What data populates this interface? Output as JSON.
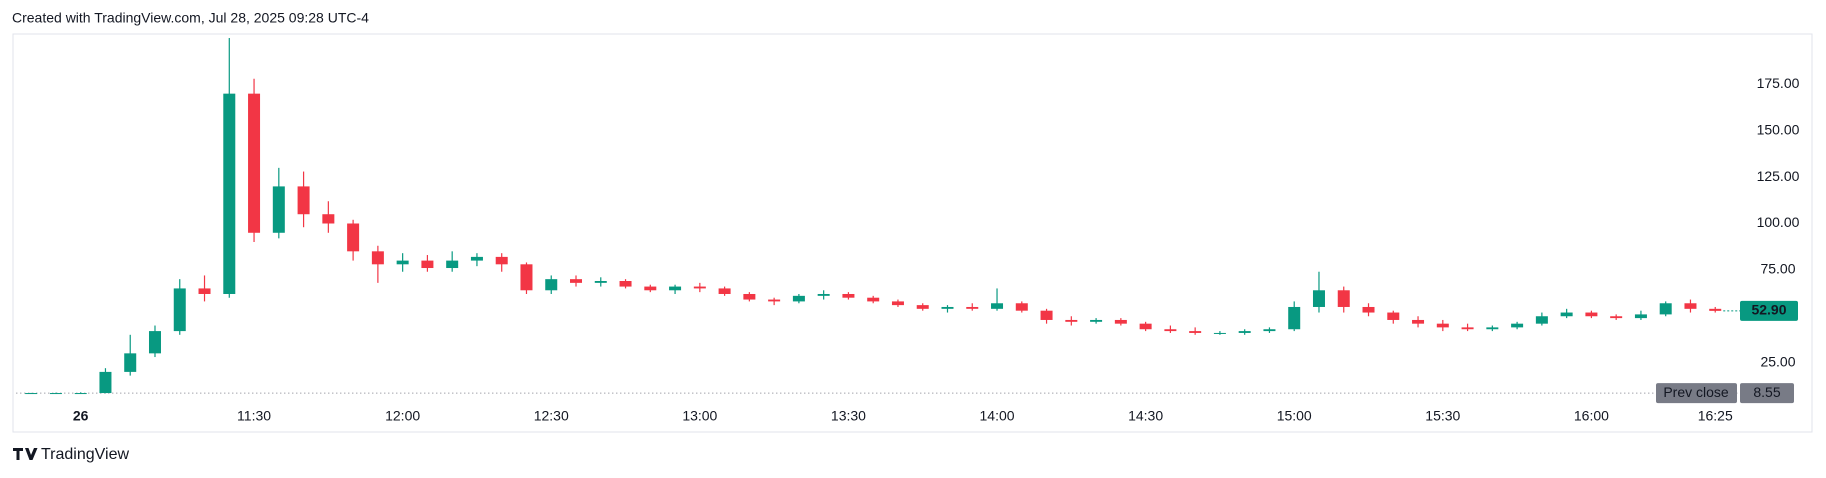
{
  "header": "Created with TradingView.com, Jul 28, 2025 09:28 UTC-4",
  "footer": "TradingView",
  "chart_data": {
    "type": "candlestick",
    "up_color": "#089981",
    "down_color": "#f23645",
    "x": [
      "10:45",
      "10:50",
      "10:55",
      "11:00",
      "11:05",
      "11:10",
      "11:15",
      "11:20",
      "11:25",
      "11:30",
      "11:35",
      "11:40",
      "11:45",
      "11:50",
      "11:55",
      "12:00",
      "12:05",
      "12:10",
      "12:15",
      "12:20",
      "12:25",
      "12:30",
      "12:35",
      "12:40",
      "12:45",
      "12:50",
      "12:55",
      "13:00",
      "13:05",
      "13:10",
      "13:15",
      "13:20",
      "13:25",
      "13:30",
      "13:35",
      "13:40",
      "13:45",
      "13:50",
      "13:55",
      "14:00",
      "14:05",
      "14:10",
      "14:15",
      "14:20",
      "14:25",
      "14:30",
      "14:35",
      "14:40",
      "14:45",
      "14:50",
      "14:55",
      "15:00",
      "15:05",
      "15:10",
      "15:15",
      "15:20",
      "15:25",
      "15:30",
      "15:35",
      "15:40",
      "15:45",
      "15:50",
      "15:55",
      "16:00",
      "16:05",
      "16:10",
      "16:15",
      "16:20",
      "16:25"
    ],
    "open": [
      8.55,
      8.6,
      8.6,
      8.6,
      20,
      30,
      42,
      65,
      62,
      170,
      95,
      120,
      105,
      100,
      85,
      78,
      80,
      76,
      80,
      82,
      78,
      64,
      70,
      68,
      69,
      66,
      64,
      66,
      65,
      62,
      59,
      58,
      61,
      62,
      60,
      58,
      56,
      54,
      55,
      54,
      57,
      53,
      48,
      47,
      48,
      46,
      43,
      42,
      41,
      41,
      42,
      43,
      55,
      64,
      55,
      52,
      48,
      46,
      44,
      43,
      44,
      46,
      50,
      52,
      50,
      49,
      51,
      57,
      54
    ],
    "high": [
      8.7,
      8.8,
      9,
      22,
      40,
      45,
      70,
      72,
      200,
      178,
      130,
      128,
      112,
      102,
      88,
      84,
      83,
      85,
      84,
      84,
      79,
      72,
      72,
      71,
      70,
      67,
      67,
      68,
      66,
      63,
      60,
      62,
      64,
      63,
      61,
      59,
      57,
      56,
      57,
      65,
      58,
      54,
      50,
      49,
      49,
      47,
      45,
      44,
      42,
      43,
      44,
      58,
      74,
      66,
      57,
      53,
      50,
      48,
      46,
      45,
      47,
      52,
      54,
      53,
      51,
      53,
      58,
      59,
      55
    ],
    "low": [
      8.5,
      8.5,
      8.5,
      8.5,
      18,
      28,
      40,
      58,
      60,
      90,
      92,
      98,
      95,
      80,
      68,
      74,
      74,
      74,
      77,
      74,
      62,
      62,
      66,
      66,
      65,
      63,
      62,
      63,
      61,
      58,
      56,
      57,
      59,
      59,
      57,
      55,
      53,
      52,
      53,
      53,
      52,
      46,
      45,
      46,
      45,
      42,
      41,
      40,
      40,
      40,
      41,
      42,
      52,
      52,
      50,
      46,
      44,
      42,
      42,
      42,
      43,
      45,
      49,
      49,
      48,
      48,
      50,
      52,
      52
    ],
    "close": [
      8.6,
      8.6,
      8.6,
      20,
      30,
      42,
      65,
      62,
      170,
      95,
      120,
      105,
      100,
      85,
      78,
      80,
      76,
      80,
      82,
      78,
      64,
      70,
      68,
      69,
      66,
      64,
      66,
      65,
      62,
      59,
      58,
      61,
      62,
      60,
      58,
      56,
      54,
      55,
      54,
      57,
      53,
      48,
      47,
      48,
      46,
      43,
      42,
      41,
      41,
      42,
      43,
      55,
      64,
      55,
      52,
      48,
      46,
      44,
      43,
      44,
      46,
      50,
      52,
      50,
      49,
      51,
      57,
      54,
      52.9
    ],
    "xlim": [
      "10:42",
      "16:30"
    ],
    "xticks": [
      {
        "value": "10:55",
        "label": "26"
      },
      "11:30",
      "12:00",
      "12:30",
      "13:00",
      "13:30",
      "14:00",
      "14:30",
      "15:00",
      "15:30",
      "16:00",
      "16:25"
    ],
    "ylim": [
      0,
      200
    ],
    "yticks": [
      {
        "value": 25,
        "label": "25.00"
      },
      {
        "value": 75,
        "label": "75.00"
      },
      {
        "value": 100,
        "label": "100.00"
      },
      {
        "value": 125,
        "label": "125.00"
      },
      {
        "value": 150,
        "label": "150.00"
      },
      {
        "value": 175,
        "label": "175.00"
      }
    ],
    "last_price": {
      "value": 52.9,
      "label": "52.90"
    },
    "prev_close_label": "Prev close",
    "prev_close": 8.55,
    "grid": false
  }
}
